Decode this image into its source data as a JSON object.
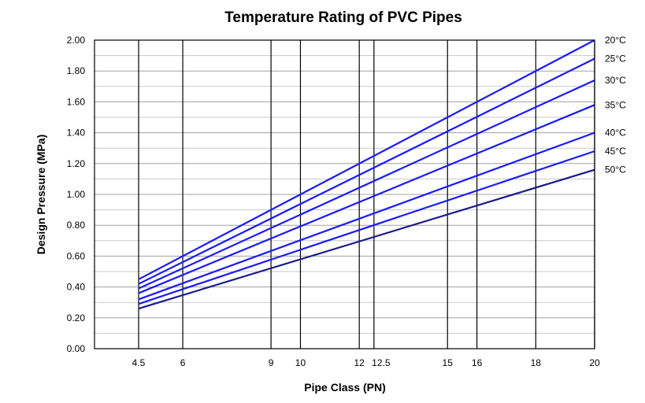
{
  "chart_data": {
    "type": "line",
    "title": "Temperature Rating of PVC Pipes",
    "xlabel": "Pipe Class (PN)",
    "ylabel": "Design Pressure (MPa)",
    "xlim": [
      3,
      20
    ],
    "ylim": [
      0,
      2.0
    ],
    "x_ticks": [
      4.5,
      6,
      9,
      10,
      12,
      12.5,
      15,
      16,
      18,
      20
    ],
    "x_tick_labels": [
      "4.5",
      "6",
      "9",
      "10",
      "12",
      "12.5",
      "15",
      "16",
      "18",
      "20"
    ],
    "y_ticks": [
      0,
      0.2,
      0.4,
      0.6,
      0.8,
      1.0,
      1.2,
      1.4,
      1.6,
      1.8,
      2.0
    ],
    "y_tick_labels": [
      "0.00",
      "0.20",
      "0.40",
      "0.60",
      "0.80",
      "1.00",
      "1.20",
      "1.40",
      "1.60",
      "1.80",
      "2.00"
    ],
    "grid": true,
    "legend": "right",
    "series": [
      {
        "name": "20°C",
        "x": [
          4.5,
          20
        ],
        "y": [
          0.45,
          2.0
        ],
        "color": "#1a1aff"
      },
      {
        "name": "25°C",
        "x": [
          4.5,
          20
        ],
        "y": [
          0.42,
          1.88
        ],
        "color": "#1a1aff"
      },
      {
        "name": "30°C",
        "x": [
          4.5,
          20
        ],
        "y": [
          0.39,
          1.74
        ],
        "color": "#1a1aff"
      },
      {
        "name": "35°C",
        "x": [
          4.5,
          20
        ],
        "y": [
          0.36,
          1.58
        ],
        "color": "#1a1aff"
      },
      {
        "name": "40°C",
        "x": [
          4.5,
          20
        ],
        "y": [
          0.32,
          1.4
        ],
        "color": "#1a1aff"
      },
      {
        "name": "45°C",
        "x": [
          4.5,
          20
        ],
        "y": [
          0.29,
          1.28
        ],
        "color": "#1a1aff"
      },
      {
        "name": "50°C",
        "x": [
          4.5,
          20
        ],
        "y": [
          0.26,
          1.16
        ],
        "color": "#1a1a8c"
      }
    ]
  }
}
